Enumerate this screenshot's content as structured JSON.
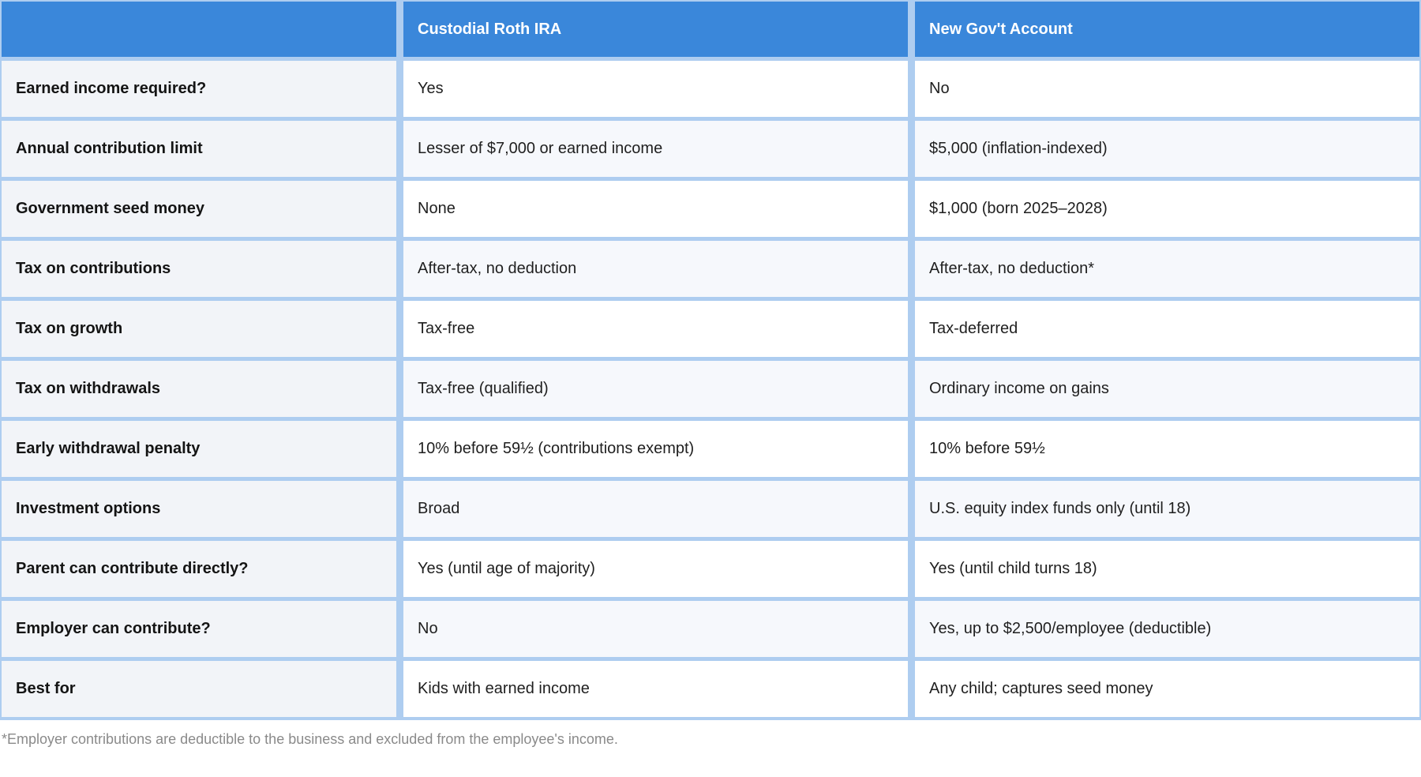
{
  "chart_data": {
    "type": "table",
    "columns": [
      "",
      "Custodial Roth IRA",
      "New Gov't Account"
    ],
    "rows": [
      [
        "Earned income required?",
        "Yes",
        "No"
      ],
      [
        "Annual contribution limit",
        "Lesser of $7,000 or earned income",
        "$5,000 (inflation-indexed)"
      ],
      [
        "Government seed money",
        "None",
        "$1,000 (born 2025–2028)"
      ],
      [
        "Tax on contributions",
        "After-tax, no deduction",
        "After-tax, no deduction*"
      ],
      [
        "Tax on growth",
        "Tax-free",
        "Tax-deferred"
      ],
      [
        "Tax on withdrawals",
        "Tax-free (qualified)",
        "Ordinary income on gains"
      ],
      [
        "Early withdrawal penalty",
        "10% before 59½ (contributions exempt)",
        "10% before 59½"
      ],
      [
        "Investment options",
        "Broad",
        "U.S. equity index funds only (until 18)"
      ],
      [
        "Parent can contribute directly?",
        "Yes (until age of majority)",
        "Yes (until child turns 18)"
      ],
      [
        "Employer can contribute?",
        "No",
        "Yes, up to $2,500/employee (deductible)"
      ],
      [
        "Best for",
        "Kids with earned income",
        "Any child; captures seed money"
      ]
    ],
    "footnote": "*Employer contributions are deductible to the business and excluded from the employee's income.",
    "layout": {
      "header_position": "top",
      "striped": true,
      "label_column_always_shaded": true
    }
  },
  "colors": {
    "header_bg": "#3a87da",
    "header_text": "#ffffff",
    "grid_border": "#aecdf0",
    "label_column_bg": "#f2f4f8",
    "stripe_row_bg": "#f6f8fc",
    "white_row_bg": "#ffffff",
    "body_text": "#1f1f1f",
    "footnote_text": "#8a8a8a"
  }
}
